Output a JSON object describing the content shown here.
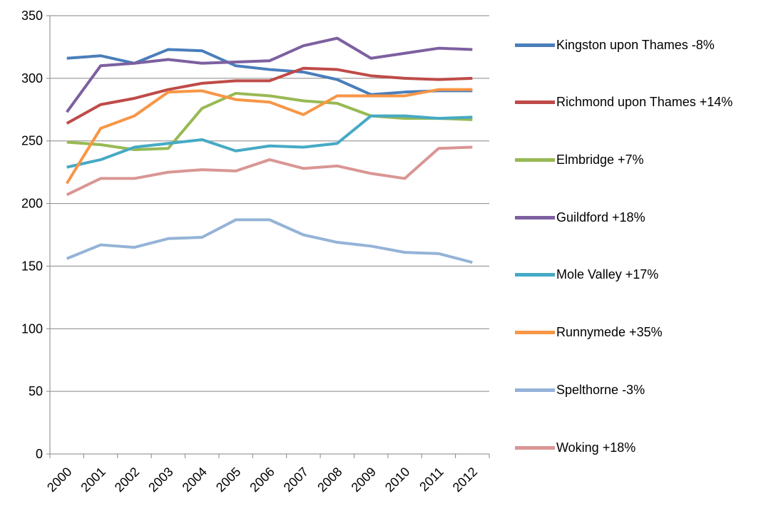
{
  "chart_data": {
    "type": "line",
    "categories": [
      "2000",
      "2001",
      "2002",
      "2003",
      "2004",
      "2005",
      "2006",
      "2007",
      "2008",
      "2009",
      "2010",
      "2011",
      "2012"
    ],
    "series": [
      {
        "name": "Kingston upon Thames -8%",
        "color": "#4a7ebb",
        "values": [
          316,
          318,
          312,
          323,
          322,
          310,
          307,
          305,
          299,
          287,
          289,
          290,
          290
        ]
      },
      {
        "name": "Richmond upon Thames +14%",
        "color": "#be4b48",
        "values": [
          264,
          279,
          284,
          291,
          296,
          298,
          298,
          308,
          307,
          302,
          300,
          299,
          300
        ]
      },
      {
        "name": "Elmbridge +7%",
        "color": "#98b954",
        "values": [
          249,
          247,
          243,
          244,
          276,
          288,
          286,
          282,
          280,
          270,
          268,
          268,
          267
        ]
      },
      {
        "name": "Guildford +18%",
        "color": "#7d60a0",
        "values": [
          273,
          310,
          312,
          315,
          312,
          313,
          314,
          326,
          332,
          316,
          320,
          324,
          323
        ]
      },
      {
        "name": "Mole Valley +17%",
        "color": "#46aac5",
        "values": [
          229,
          235,
          245,
          248,
          251,
          242,
          246,
          245,
          248,
          270,
          270,
          268,
          269
        ]
      },
      {
        "name": "Runnymede +35%",
        "color": "#f79646",
        "values": [
          216,
          260,
          270,
          289,
          290,
          283,
          281,
          271,
          286,
          286,
          286,
          291,
          291
        ]
      },
      {
        "name": "Spelthorne -3%",
        "color": "#95b3d7",
        "values": [
          156,
          167,
          165,
          172,
          173,
          187,
          187,
          175,
          169,
          166,
          161,
          160,
          153
        ]
      },
      {
        "name": "Woking +18%",
        "color": "#d99694",
        "values": [
          207,
          220,
          220,
          225,
          227,
          226,
          235,
          228,
          230,
          224,
          220,
          244,
          245
        ]
      }
    ],
    "ylim": [
      0,
      350
    ],
    "yticks": [
      0,
      50,
      100,
      150,
      200,
      250,
      300,
      350
    ],
    "grid": true,
    "legend": "right"
  }
}
